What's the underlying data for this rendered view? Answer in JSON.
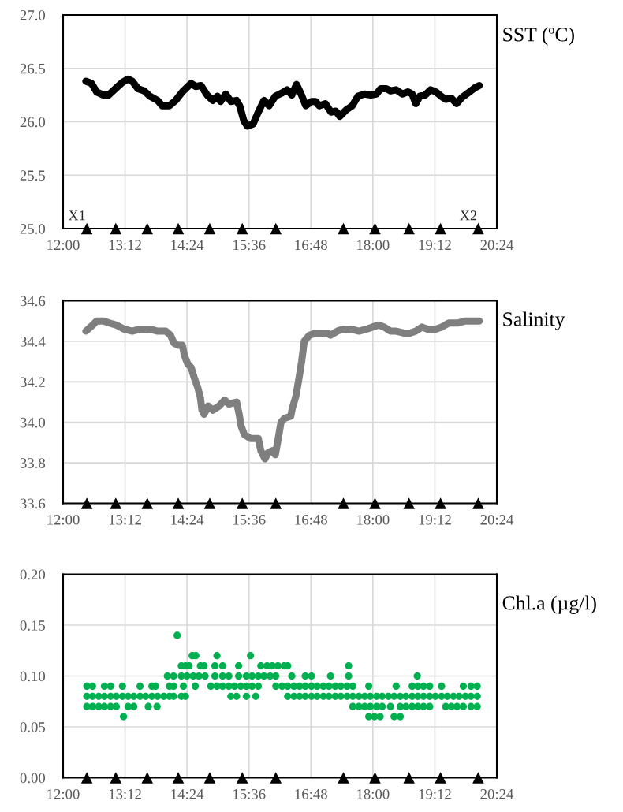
{
  "chart_data": [
    {
      "type": "line",
      "title": "SST (ºC)",
      "xlim": [
        12,
        20.4
      ],
      "xticks": [
        {
          "value": 12,
          "label": "12:00"
        },
        {
          "value": 13.2,
          "label": "13:12"
        },
        {
          "value": 14.4,
          "label": "14:24"
        },
        {
          "value": 15.6,
          "label": "15:36"
        },
        {
          "value": 16.8,
          "label": "16:48"
        },
        {
          "value": 18,
          "label": "18:00"
        },
        {
          "value": 19.2,
          "label": "19:12"
        },
        {
          "value": 20.4,
          "label": "20:24"
        }
      ],
      "ylim": [
        25,
        27
      ],
      "yticks": [
        {
          "value": 25,
          "label": "25.0"
        },
        {
          "value": 25.5,
          "label": "25.5"
        },
        {
          "value": 26,
          "label": "26.0"
        },
        {
          "value": 26.5,
          "label": "26.5"
        },
        {
          "value": 27,
          "label": "27.0"
        }
      ],
      "grid": true,
      "annotations": [
        {
          "text": "X1",
          "x": 12.46,
          "y": 25.0
        },
        {
          "text": "X2",
          "x": 20.04,
          "y": 25.0
        }
      ],
      "series": [
        {
          "color": "#000000",
          "marker": "none",
          "line_style": "solid",
          "x": [
            12.44,
            12.55,
            12.65,
            12.78,
            12.88,
            12.99,
            13.15,
            13.26,
            13.34,
            13.45,
            13.57,
            13.68,
            13.83,
            13.92,
            14.06,
            14.18,
            14.31,
            14.48,
            14.57,
            14.67,
            14.79,
            14.9,
            14.99,
            15.05,
            15.15,
            15.25,
            15.36,
            15.42,
            15.5,
            15.57,
            15.68,
            15.78,
            15.89,
            15.99,
            16.11,
            16.24,
            16.34,
            16.43,
            16.52,
            16.6,
            16.7,
            16.81,
            16.89,
            16.96,
            17.08,
            17.19,
            17.28,
            17.36,
            17.48,
            17.6,
            17.71,
            17.84,
            17.96,
            18.07,
            18.15,
            18.26,
            18.34,
            18.45,
            18.57,
            18.68,
            18.76,
            18.83,
            18.91,
            19.01,
            19.12,
            19.22,
            19.32,
            19.41,
            19.52,
            19.62,
            19.73,
            19.87,
            19.98,
            20.06
          ],
          "values": [
            26.38,
            26.36,
            26.28,
            26.25,
            26.25,
            26.3,
            26.37,
            26.4,
            26.38,
            26.31,
            26.29,
            26.24,
            26.2,
            26.15,
            26.15,
            26.2,
            26.28,
            26.36,
            26.33,
            26.34,
            26.25,
            26.2,
            26.24,
            26.19,
            26.26,
            26.19,
            26.2,
            26.15,
            26.01,
            25.96,
            25.98,
            26.09,
            26.2,
            26.15,
            26.24,
            26.27,
            26.3,
            26.25,
            26.35,
            26.27,
            26.15,
            26.19,
            26.19,
            26.15,
            26.17,
            26.09,
            26.1,
            26.05,
            26.11,
            26.15,
            26.24,
            26.26,
            26.25,
            26.26,
            26.31,
            26.31,
            26.29,
            26.3,
            26.26,
            26.28,
            26.26,
            26.17,
            26.24,
            26.25,
            26.3,
            26.28,
            26.24,
            26.21,
            26.22,
            26.17,
            26.23,
            26.28,
            26.32,
            26.34
          ]
        },
        {
          "type": "scatter",
          "color": "#000000",
          "marker": "triangle",
          "x": [
            12.46,
            13.02,
            13.63,
            14.23,
            14.84,
            15.47,
            16.12,
            17.43,
            18.04,
            18.7,
            19.31,
            20.04
          ],
          "values": [
            25,
            25,
            25,
            25,
            25,
            25,
            25,
            25,
            25,
            25,
            25,
            25
          ]
        }
      ]
    },
    {
      "type": "line",
      "title": "Salinity",
      "xlim": [
        12,
        20.4
      ],
      "xticks": [
        {
          "value": 12,
          "label": "12:00"
        },
        {
          "value": 13.2,
          "label": "13:12"
        },
        {
          "value": 14.4,
          "label": "14:24"
        },
        {
          "value": 15.6,
          "label": "15:36"
        },
        {
          "value": 16.8,
          "label": "16:48"
        },
        {
          "value": 18,
          "label": "18:00"
        },
        {
          "value": 19.2,
          "label": "19:12"
        },
        {
          "value": 20.4,
          "label": "20:24"
        }
      ],
      "ylim": [
        33.6,
        34.6
      ],
      "yticks": [
        {
          "value": 33.6,
          "label": "33.6"
        },
        {
          "value": 33.8,
          "label": "33.8"
        },
        {
          "value": 34.0,
          "label": "34.0"
        },
        {
          "value": 34.2,
          "label": "34.2"
        },
        {
          "value": 34.4,
          "label": "34.4"
        },
        {
          "value": 34.6,
          "label": "34.6"
        }
      ],
      "grid": true,
      "series": [
        {
          "color": "#7f7f7f",
          "marker": "none",
          "line_style": "solid",
          "x": [
            12.44,
            12.53,
            12.65,
            12.78,
            12.9,
            13.03,
            13.18,
            13.34,
            13.49,
            13.68,
            13.83,
            13.99,
            14.08,
            14.15,
            14.23,
            14.31,
            14.35,
            14.41,
            14.48,
            14.54,
            14.61,
            14.66,
            14.69,
            14.73,
            14.81,
            14.9,
            15.02,
            15.13,
            15.21,
            15.36,
            15.41,
            15.45,
            15.51,
            15.63,
            15.78,
            15.83,
            15.91,
            15.97,
            16.05,
            16.11,
            16.16,
            16.22,
            16.29,
            16.41,
            16.44,
            16.51,
            16.57,
            16.62,
            16.67,
            16.77,
            16.89,
            17.0,
            17.12,
            17.18,
            17.31,
            17.42,
            17.57,
            17.73,
            17.88,
            17.99,
            18.11,
            18.22,
            18.34,
            18.45,
            18.61,
            18.72,
            18.83,
            18.95,
            19.06,
            19.22,
            19.33,
            19.47,
            19.64,
            19.79,
            19.94,
            20.06
          ],
          "values": [
            34.45,
            34.47,
            34.5,
            34.5,
            34.49,
            34.48,
            34.46,
            34.45,
            34.46,
            34.46,
            34.45,
            34.45,
            34.43,
            34.39,
            34.38,
            34.38,
            34.33,
            34.29,
            34.27,
            34.22,
            34.17,
            34.12,
            34.06,
            34.04,
            34.08,
            34.06,
            34.08,
            34.11,
            34.09,
            34.1,
            34.04,
            33.98,
            33.94,
            33.92,
            33.92,
            33.86,
            33.82,
            33.85,
            33.86,
            33.84,
            33.91,
            34.0,
            34.02,
            34.03,
            34.07,
            34.13,
            34.22,
            34.3,
            34.4,
            34.43,
            34.44,
            34.44,
            34.44,
            34.43,
            34.45,
            34.46,
            34.46,
            34.45,
            34.46,
            34.47,
            34.48,
            34.47,
            34.45,
            34.45,
            34.44,
            34.44,
            34.45,
            34.47,
            34.46,
            34.46,
            34.47,
            34.49,
            34.49,
            34.5,
            34.5,
            34.5
          ]
        },
        {
          "type": "scatter",
          "color": "#000000",
          "marker": "triangle",
          "x": [
            12.46,
            13.02,
            13.63,
            14.23,
            14.84,
            15.47,
            16.12,
            17.43,
            18.04,
            18.7,
            19.31,
            20.04
          ],
          "values": [
            33.6,
            33.6,
            33.6,
            33.6,
            33.6,
            33.6,
            33.6,
            33.6,
            33.6,
            33.6,
            33.6,
            33.6
          ]
        }
      ]
    },
    {
      "type": "scatter",
      "title": "Chl.a (µg/l)",
      "xlim": [
        12,
        20.4
      ],
      "xticks": [
        {
          "value": 12,
          "label": "12:00"
        },
        {
          "value": 13.2,
          "label": "13:12"
        },
        {
          "value": 14.4,
          "label": "14:24"
        },
        {
          "value": 15.6,
          "label": "15:36"
        },
        {
          "value": 16.8,
          "label": "16:48"
        },
        {
          "value": 18,
          "label": "18:00"
        },
        {
          "value": 19.2,
          "label": "19:12"
        },
        {
          "value": 20.4,
          "label": "20:24"
        }
      ],
      "ylim": [
        0,
        0.2
      ],
      "yticks": [
        {
          "value": 0,
          "label": "0.00"
        },
        {
          "value": 0.05,
          "label": "0.05"
        },
        {
          "value": 0.1,
          "label": "0.10"
        },
        {
          "value": 0.15,
          "label": "0.15"
        },
        {
          "value": 0.2,
          "label": "0.20"
        }
      ],
      "grid": true,
      "series": [
        {
          "color": "#00b050",
          "marker": "circle",
          "x": [
            12.46,
            12.57,
            12.69,
            12.8,
            12.92,
            13.03,
            13.15,
            13.26,
            13.37,
            13.49,
            13.6,
            13.72,
            13.83,
            13.95,
            14.06,
            14.14,
            14.29,
            14.37,
            15.25,
            15.36,
            15.55,
            15.73,
            16.35,
            16.47,
            16.58,
            16.69,
            16.81,
            16.92,
            17.04,
            17.15,
            17.27,
            17.38,
            17.5,
            17.61,
            17.73,
            17.84,
            17.95,
            18.07,
            18.18,
            18.3,
            18.41,
            18.53,
            18.64,
            18.76,
            18.87,
            18.98,
            19.1,
            19.21,
            19.33,
            19.44,
            19.56,
            19.67,
            19.79,
            19.9,
            20.02,
            12.46,
            12.57,
            12.8,
            12.92,
            13.15,
            13.49,
            13.72,
            13.79,
            14.06,
            14.14,
            14.33,
            14.56,
            14.86,
            14.98,
            15.09,
            15.21,
            15.32,
            15.44,
            15.55,
            15.66,
            15.78,
            16.12,
            16.24,
            16.35,
            16.47,
            16.58,
            16.69,
            16.81,
            16.92,
            17.04,
            17.15,
            17.27,
            17.38,
            17.5,
            17.61,
            17.92,
            18.45,
            18.76,
            18.87,
            18.98,
            19.1,
            19.33,
            19.75,
            19.9,
            20.02,
            14.02,
            14.14,
            14.29,
            14.4,
            14.52,
            14.63,
            14.75,
            14.94,
            15.09,
            15.21,
            15.4,
            15.55,
            15.66,
            15.78,
            15.89,
            16.01,
            16.12,
            16.43,
            16.69,
            16.81,
            17.18,
            17.53,
            18.86,
            14.29,
            14.37,
            14.44,
            14.66,
            14.73,
            14.94,
            15.09,
            15.4,
            15.83,
            15.95,
            16.05,
            16.16,
            16.28,
            16.35,
            17.53,
            14.5,
            14.57,
            14.98,
            15.63,
            14.21,
            12.46,
            12.57,
            12.69,
            12.8,
            12.92,
            13.03,
            13.26,
            13.37,
            13.65,
            13.82,
            17.61,
            17.73,
            17.84,
            17.95,
            18.07,
            18.18,
            18.34,
            18.53,
            18.64,
            18.76,
            18.87,
            18.98,
            19.1,
            19.41,
            19.52,
            19.63,
            19.75,
            19.9,
            20.02,
            13.17,
            17.92,
            18.03,
            18.14,
            18.41,
            18.53
          ],
          "values": [
            0.08,
            0.08,
            0.08,
            0.08,
            0.08,
            0.08,
            0.08,
            0.08,
            0.08,
            0.08,
            0.08,
            0.08,
            0.08,
            0.08,
            0.08,
            0.08,
            0.08,
            0.08,
            0.08,
            0.08,
            0.08,
            0.08,
            0.08,
            0.08,
            0.08,
            0.08,
            0.08,
            0.08,
            0.08,
            0.08,
            0.08,
            0.08,
            0.08,
            0.08,
            0.08,
            0.08,
            0.08,
            0.08,
            0.08,
            0.08,
            0.08,
            0.08,
            0.08,
            0.08,
            0.08,
            0.08,
            0.08,
            0.08,
            0.08,
            0.08,
            0.08,
            0.08,
            0.08,
            0.08,
            0.08,
            0.09,
            0.09,
            0.09,
            0.09,
            0.09,
            0.09,
            0.09,
            0.09,
            0.09,
            0.09,
            0.09,
            0.09,
            0.09,
            0.09,
            0.09,
            0.09,
            0.09,
            0.09,
            0.09,
            0.09,
            0.09,
            0.09,
            0.09,
            0.09,
            0.09,
            0.09,
            0.09,
            0.09,
            0.09,
            0.09,
            0.09,
            0.09,
            0.09,
            0.09,
            0.09,
            0.09,
            0.09,
            0.09,
            0.09,
            0.09,
            0.09,
            0.09,
            0.09,
            0.09,
            0.09,
            0.1,
            0.1,
            0.1,
            0.1,
            0.1,
            0.1,
            0.1,
            0.1,
            0.1,
            0.1,
            0.1,
            0.1,
            0.1,
            0.1,
            0.1,
            0.1,
            0.1,
            0.1,
            0.1,
            0.1,
            0.1,
            0.1,
            0.1,
            0.11,
            0.11,
            0.11,
            0.11,
            0.11,
            0.11,
            0.11,
            0.11,
            0.11,
            0.11,
            0.11,
            0.11,
            0.11,
            0.11,
            0.11,
            0.12,
            0.12,
            0.12,
            0.12,
            0.14,
            0.07,
            0.07,
            0.07,
            0.07,
            0.07,
            0.07,
            0.07,
            0.07,
            0.07,
            0.07,
            0.07,
            0.07,
            0.07,
            0.07,
            0.07,
            0.07,
            0.07,
            0.07,
            0.07,
            0.07,
            0.07,
            0.07,
            0.07,
            0.07,
            0.07,
            0.07,
            0.07,
            0.07,
            0.07,
            0.06,
            0.06,
            0.06,
            0.06,
            0.06,
            0.06
          ]
        },
        {
          "type": "scatter",
          "color": "#000000",
          "marker": "triangle",
          "x": [
            12.46,
            13.02,
            13.63,
            14.23,
            14.84,
            15.47,
            16.12,
            17.43,
            18.04,
            18.7,
            19.31,
            20.04
          ],
          "values": [
            0,
            0,
            0,
            0,
            0,
            0,
            0,
            0,
            0,
            0,
            0,
            0
          ]
        }
      ]
    }
  ]
}
